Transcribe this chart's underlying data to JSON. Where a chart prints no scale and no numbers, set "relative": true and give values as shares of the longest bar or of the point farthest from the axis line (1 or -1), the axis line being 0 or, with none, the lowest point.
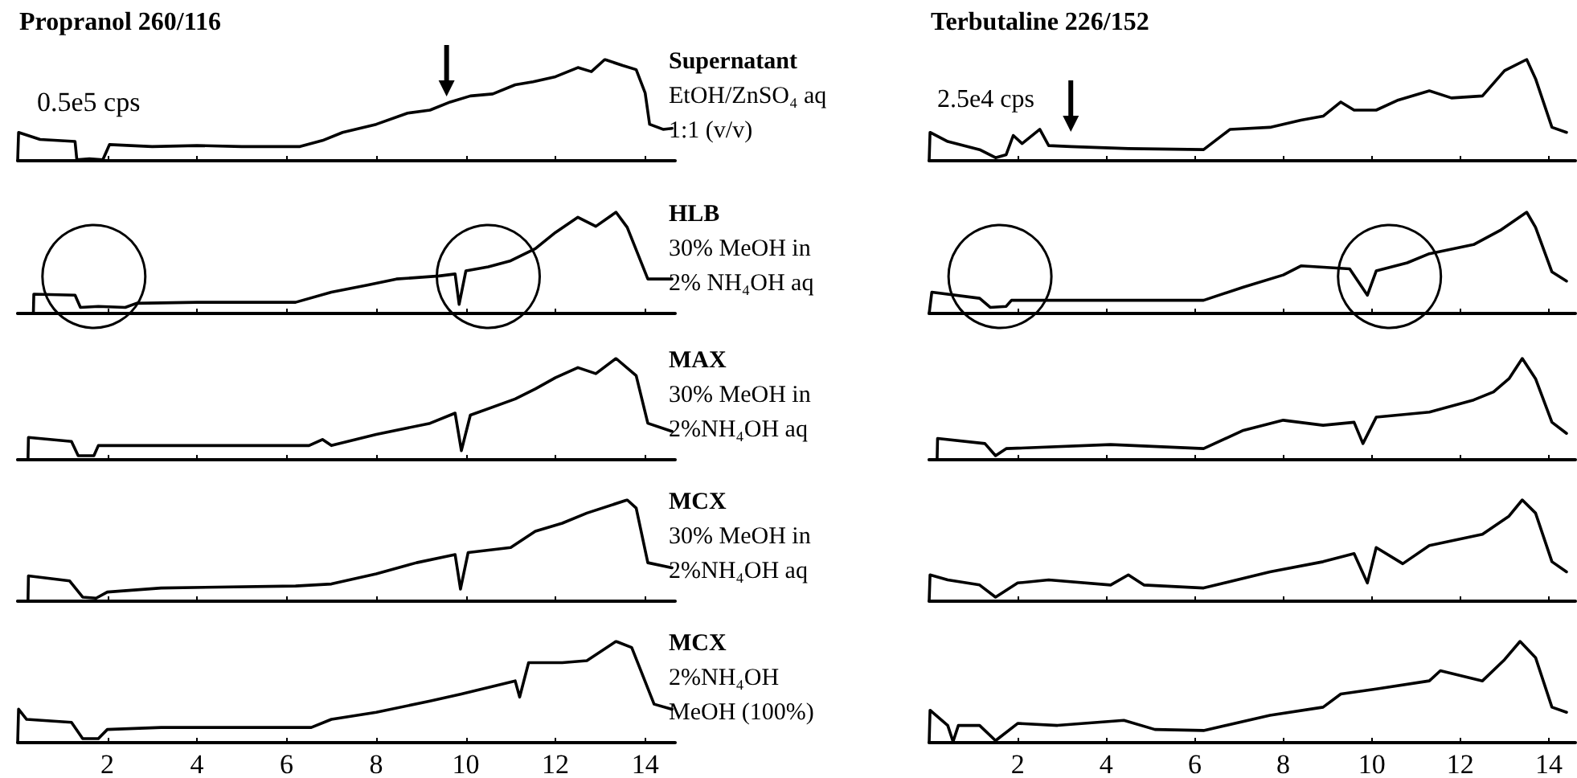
{
  "chart_data": [
    {
      "type": "line",
      "title": "Propranol 260/116",
      "annotations": [
        "Supernatant",
        "EtOH/ZnSO₄ aq",
        "1:1 (v/v)",
        "0.5e5 cps"
      ],
      "relative": true,
      "xlim": [
        0,
        14.67
      ],
      "xticks": [
        2,
        4,
        6,
        8,
        10,
        12,
        14
      ],
      "tick_labels": false,
      "series": [
        {
          "color": "#000000",
          "x": [
            0,
            0.02,
            0.5,
            1.28,
            1.32,
            1.6,
            1.9,
            2.05,
            3,
            4,
            5,
            6.3,
            6.8,
            7.25,
            8,
            8.7,
            9.2,
            9.65,
            10.1,
            10.6,
            11.1,
            11.5,
            12,
            12.5,
            12.8,
            13.1,
            13.5,
            13.8,
            14,
            14.1,
            14.4,
            14.6
          ],
          "values": [
            0,
            0.28,
            0.21,
            0.19,
            0.01,
            0.02,
            0.01,
            0.16,
            0.14,
            0.15,
            0.14,
            0.14,
            0.2,
            0.28,
            0.36,
            0.47,
            0.5,
            0.58,
            0.64,
            0.66,
            0.75,
            0.78,
            0.83,
            0.92,
            0.88,
            1.0,
            0.94,
            0.9,
            0.67,
            0.36,
            0.31,
            0.32
          ]
        }
      ]
    },
    {
      "type": "line",
      "title": "Terbutaline 226/152",
      "annotations": [
        "2.5e4 cps"
      ],
      "relative": true,
      "xlim": [
        0,
        14.6
      ],
      "xticks": [
        2,
        4,
        6,
        8,
        10,
        12,
        14
      ],
      "tick_labels": false,
      "series": [
        {
          "color": "#000000",
          "x": [
            0,
            0.02,
            0.42,
            1.14,
            1.5,
            1.74,
            1.9,
            2.1,
            2.5,
            2.7,
            3.2,
            4.5,
            6.2,
            6.8,
            7.7,
            8.4,
            8.9,
            9.3,
            9.6,
            10.1,
            10.6,
            11.3,
            11.8,
            12.5,
            13,
            13.5,
            13.7,
            14.07,
            14.4
          ],
          "values": [
            0,
            0.28,
            0.19,
            0.11,
            0.03,
            0.06,
            0.25,
            0.17,
            0.31,
            0.15,
            0.14,
            0.12,
            0.11,
            0.31,
            0.33,
            0.4,
            0.44,
            0.58,
            0.5,
            0.5,
            0.6,
            0.69,
            0.62,
            0.64,
            0.89,
            1.0,
            0.81,
            0.33,
            0.28
          ]
        }
      ]
    },
    {
      "type": "line",
      "annotations": [
        "HLB",
        "30% MeOH in",
        "2% NH₄OH aq"
      ],
      "relative": true,
      "xlim": [
        0,
        14.67
      ],
      "xticks": [
        2,
        4,
        6,
        8,
        10,
        12,
        14
      ],
      "tick_labels": false,
      "series": [
        {
          "color": "#000000",
          "x": [
            0,
            0.35,
            0.36,
            1.28,
            1.4,
            1.8,
            2.4,
            2.65,
            4,
            6.2,
            7,
            7.8,
            8.45,
            9.4,
            9.76,
            9.85,
            10,
            10.5,
            11,
            11.55,
            12,
            12.5,
            12.9,
            13.35,
            13.6,
            14.06,
            14.6
          ],
          "values": [
            0,
            0,
            0.19,
            0.18,
            0.06,
            0.07,
            0.06,
            0.1,
            0.11,
            0.11,
            0.21,
            0.28,
            0.34,
            0.37,
            0.39,
            0.09,
            0.42,
            0.46,
            0.52,
            0.64,
            0.8,
            0.95,
            0.86,
            1.0,
            0.85,
            0.34,
            0.34
          ]
        }
      ]
    },
    {
      "type": "line",
      "relative": true,
      "xlim": [
        0,
        14.6
      ],
      "xticks": [
        2,
        4,
        6,
        8,
        10,
        12,
        14
      ],
      "tick_labels": false,
      "series": [
        {
          "color": "#000000",
          "x": [
            0,
            0.06,
            1.14,
            1.38,
            1.74,
            1.86,
            4,
            6.2,
            7.1,
            8,
            8.4,
            9.5,
            9.9,
            10.1,
            10.8,
            11.3,
            12.3,
            12.9,
            13.5,
            13.7,
            14.07,
            14.4
          ],
          "values": [
            0,
            0.21,
            0.15,
            0.06,
            0.07,
            0.13,
            0.13,
            0.13,
            0.26,
            0.38,
            0.47,
            0.44,
            0.18,
            0.42,
            0.5,
            0.59,
            0.68,
            0.82,
            1.0,
            0.85,
            0.41,
            0.32
          ]
        }
      ]
    },
    {
      "type": "line",
      "annotations": [
        "MAX",
        "30% MeOH in",
        "2%NH₄OH aq"
      ],
      "relative": true,
      "xlim": [
        0,
        14.67
      ],
      "xticks": [
        2,
        4,
        6,
        8,
        10,
        12,
        14
      ],
      "tick_labels": false,
      "series": [
        {
          "color": "#000000",
          "x": [
            0,
            0.23,
            0.24,
            1.2,
            1.35,
            1.7,
            1.8,
            4,
            6.5,
            6.8,
            7,
            8,
            9.2,
            9.76,
            9.9,
            10.1,
            11.1,
            11.55,
            12,
            12.5,
            12.9,
            13.35,
            13.8,
            14.06,
            14.6
          ],
          "values": [
            0,
            0,
            0.22,
            0.18,
            0.04,
            0.04,
            0.14,
            0.14,
            0.14,
            0.2,
            0.14,
            0.25,
            0.36,
            0.46,
            0.09,
            0.44,
            0.6,
            0.7,
            0.81,
            0.91,
            0.85,
            1.0,
            0.83,
            0.36,
            0.28
          ]
        }
      ]
    },
    {
      "type": "line",
      "relative": true,
      "xlim": [
        0,
        14.6
      ],
      "xticks": [
        2,
        4,
        6,
        8,
        10,
        12,
        14
      ],
      "tick_labels": false,
      "series": [
        {
          "color": "#000000",
          "x": [
            0,
            0.18,
            0.19,
            1.26,
            1.5,
            1.74,
            4.1,
            6.2,
            7.1,
            8,
            8.9,
            9.6,
            9.8,
            10.1,
            11.3,
            12.3,
            12.75,
            13.1,
            13.4,
            13.7,
            14.07,
            14.4
          ],
          "values": [
            0,
            0,
            0.21,
            0.16,
            0.04,
            0.11,
            0.15,
            0.11,
            0.29,
            0.39,
            0.34,
            0.37,
            0.16,
            0.42,
            0.47,
            0.59,
            0.67,
            0.8,
            1.0,
            0.8,
            0.37,
            0.26
          ]
        }
      ]
    },
    {
      "type": "line",
      "annotations": [
        "MCX",
        "30% MeOH in",
        "2%NH₄OH aq"
      ],
      "relative": true,
      "xlim": [
        0,
        14.67
      ],
      "xticks": [
        2,
        4,
        6,
        8,
        10,
        12,
        14
      ],
      "tick_labels": false,
      "series": [
        {
          "color": "#000000",
          "x": [
            0,
            0.23,
            0.24,
            1.16,
            1.45,
            1.75,
            2,
            3.2,
            6.2,
            7,
            8,
            8.9,
            9.76,
            9.88,
            10.05,
            11,
            11.55,
            12.15,
            12.7,
            13.6,
            13.8,
            14.06,
            14.6
          ],
          "values": [
            0,
            0,
            0.25,
            0.2,
            0.04,
            0.03,
            0.09,
            0.13,
            0.15,
            0.17,
            0.27,
            0.38,
            0.46,
            0.12,
            0.48,
            0.53,
            0.69,
            0.77,
            0.87,
            1.0,
            0.92,
            0.38,
            0.33
          ]
        }
      ]
    },
    {
      "type": "line",
      "relative": true,
      "xlim": [
        0,
        14.6
      ],
      "xticks": [
        2,
        4,
        6,
        8,
        10,
        12,
        14
      ],
      "tick_labels": false,
      "series": [
        {
          "color": "#000000",
          "x": [
            0,
            0.02,
            0.42,
            1.14,
            1.5,
            2,
            2.7,
            4.1,
            4.5,
            4.85,
            6.2,
            7.7,
            8.9,
            9.6,
            9.9,
            10.1,
            10.7,
            11.3,
            12.5,
            13.1,
            13.4,
            13.7,
            14.07,
            14.4
          ],
          "values": [
            0,
            0.26,
            0.21,
            0.16,
            0.04,
            0.18,
            0.21,
            0.16,
            0.26,
            0.16,
            0.13,
            0.29,
            0.39,
            0.47,
            0.18,
            0.53,
            0.37,
            0.55,
            0.66,
            0.84,
            1.0,
            0.87,
            0.39,
            0.29
          ]
        }
      ]
    },
    {
      "type": "line",
      "annotations": [
        "MCX",
        "2%NH₄OH",
        "MeOH (100%)"
      ],
      "relative": true,
      "xlim": [
        0,
        14.67
      ],
      "xticks": [
        2,
        4,
        6,
        8,
        10,
        12,
        14
      ],
      "series": [
        {
          "color": "#000000",
          "x": [
            0,
            0.02,
            0.2,
            1.2,
            1.45,
            1.8,
            2,
            3.2,
            6.55,
            7,
            8,
            9.2,
            9.9,
            11.1,
            11.2,
            11.4,
            12.15,
            12.7,
            13.35,
            13.7,
            14.2,
            14.6
          ],
          "values": [
            0,
            0.33,
            0.23,
            0.2,
            0.04,
            0.04,
            0.13,
            0.15,
            0.15,
            0.23,
            0.3,
            0.41,
            0.48,
            0.61,
            0.45,
            0.79,
            0.79,
            0.81,
            1.0,
            0.94,
            0.38,
            0.33
          ]
        }
      ]
    },
    {
      "type": "line",
      "relative": true,
      "xlim": [
        0,
        14.6
      ],
      "xticks": [
        2,
        4,
        6,
        8,
        10,
        12,
        14
      ],
      "series": [
        {
          "color": "#000000",
          "x": [
            0,
            0.02,
            0.42,
            0.54,
            0.66,
            1.14,
            1.5,
            2,
            2.9,
            4.4,
            5.1,
            6.2,
            7.7,
            8.9,
            9.3,
            10.1,
            11.3,
            11.55,
            12.5,
            13,
            13.35,
            13.7,
            14.07,
            14.4
          ],
          "values": [
            0,
            0.32,
            0.17,
            0.01,
            0.17,
            0.17,
            0.02,
            0.19,
            0.17,
            0.22,
            0.13,
            0.12,
            0.27,
            0.35,
            0.48,
            0.53,
            0.61,
            0.71,
            0.61,
            0.82,
            1.0,
            0.84,
            0.35,
            0.3
          ]
        }
      ]
    }
  ]
}
